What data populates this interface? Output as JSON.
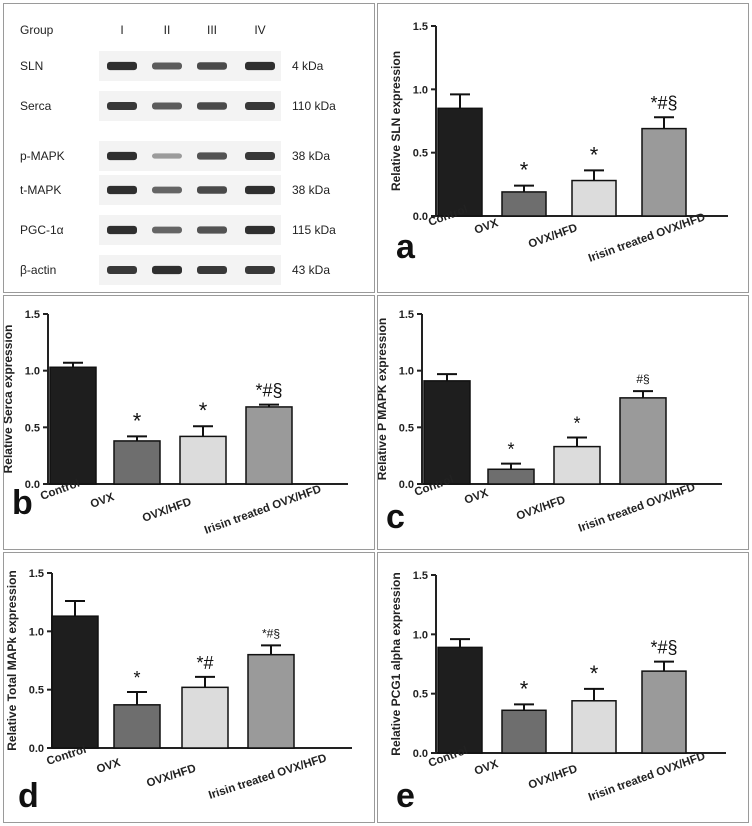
{
  "western_blot": {
    "group_header": "Group",
    "lanes": [
      "I",
      "II",
      "III",
      "IV"
    ],
    "rows": [
      {
        "label": "SLN",
        "kda": "4 kDa",
        "intensities": [
          0.85,
          0.6,
          0.7,
          0.85
        ]
      },
      {
        "label": "Serca",
        "kda": "110 kDa",
        "intensities": [
          0.8,
          0.6,
          0.7,
          0.8
        ]
      },
      {
        "label": "p-MAPK",
        "kda": "38 kDa",
        "intensities": [
          0.85,
          0.25,
          0.65,
          0.8
        ]
      },
      {
        "label": "t-MAPK",
        "kda": "38 kDa",
        "intensities": [
          0.85,
          0.55,
          0.7,
          0.85
        ]
      },
      {
        "label": "PGC-1α",
        "kda": "115 kDa",
        "intensities": [
          0.85,
          0.55,
          0.65,
          0.85
        ]
      },
      {
        "label": "β-actin",
        "kda": "43 kDa",
        "intensities": [
          0.8,
          0.85,
          0.8,
          0.8
        ]
      }
    ]
  },
  "chart_data": [
    {
      "panel": "a",
      "type": "bar",
      "ylabel": "Relative SLN expression",
      "categories": [
        "Control",
        "OVX",
        "OVX/HFD",
        "Irisin treated OVX/HFD"
      ],
      "values": [
        0.85,
        0.19,
        0.28,
        0.69
      ],
      "errors": [
        0.11,
        0.05,
        0.08,
        0.09
      ],
      "annotations": [
        "",
        "*",
        "*",
        "*#§"
      ],
      "ylim": [
        0,
        1.5
      ],
      "yticks": [
        "0.0",
        "0.5",
        "1.0",
        "1.5"
      ]
    },
    {
      "panel": "b",
      "type": "bar",
      "ylabel": "Relative Serca expression",
      "categories": [
        "Control",
        "OVX",
        "OVX/HFD",
        "Irisin treated OVX/HFD"
      ],
      "values": [
        1.03,
        0.38,
        0.42,
        0.68
      ],
      "errors": [
        0.04,
        0.04,
        0.09,
        0.02
      ],
      "annotations": [
        "",
        "*",
        "*",
        "*#§"
      ],
      "ylim": [
        0,
        1.5
      ],
      "yticks": [
        "0.0",
        "0.5",
        "1.0",
        "1.5"
      ]
    },
    {
      "panel": "c",
      "type": "bar",
      "ylabel": "Relative P MAPK expression",
      "categories": [
        "Control",
        "OVX",
        "OVX/HFD",
        "Irisin treated OVX/HFD"
      ],
      "values": [
        0.91,
        0.13,
        0.33,
        0.76
      ],
      "errors": [
        0.06,
        0.05,
        0.08,
        0.06
      ],
      "annotations": [
        "",
        "*",
        "*",
        "#§"
      ],
      "ylim": [
        0,
        1.5
      ],
      "yticks": [
        "0.0",
        "0.5",
        "1.0",
        "1.5"
      ]
    },
    {
      "panel": "d",
      "type": "bar",
      "ylabel": "Relative Total MAPk expression",
      "categories": [
        "Control",
        "OVX",
        "OVX/HFD",
        "Irisin treated OVX/HFD"
      ],
      "values": [
        1.13,
        0.37,
        0.52,
        0.8
      ],
      "errors": [
        0.13,
        0.11,
        0.09,
        0.08
      ],
      "annotations": [
        "",
        "*",
        "*#",
        "*#§"
      ],
      "ylim": [
        0,
        1.5
      ],
      "yticks": [
        "0.0",
        "0.5",
        "1.0",
        "1.5"
      ]
    },
    {
      "panel": "e",
      "type": "bar",
      "ylabel": "Relative PCG1 alpha expression",
      "categories": [
        "Control",
        "OVX",
        "OVX/HFD",
        "Irisin treated OVX/HFD"
      ],
      "values": [
        0.89,
        0.36,
        0.44,
        0.69
      ],
      "errors": [
        0.07,
        0.05,
        0.1,
        0.08
      ],
      "annotations": [
        "",
        "*",
        "*",
        "*#§"
      ],
      "ylim": [
        0,
        1.5
      ],
      "yticks": [
        "0.0",
        "0.5",
        "1.0",
        "1.5"
      ]
    }
  ],
  "colors": {
    "bar_fills": [
      "#1e1e1e",
      "#6e6e6e",
      "#dcdcdc",
      "#9a9a9a"
    ],
    "axis": "#222222",
    "blot_background": "#f3f3f3",
    "band": "#1a1a1a"
  }
}
